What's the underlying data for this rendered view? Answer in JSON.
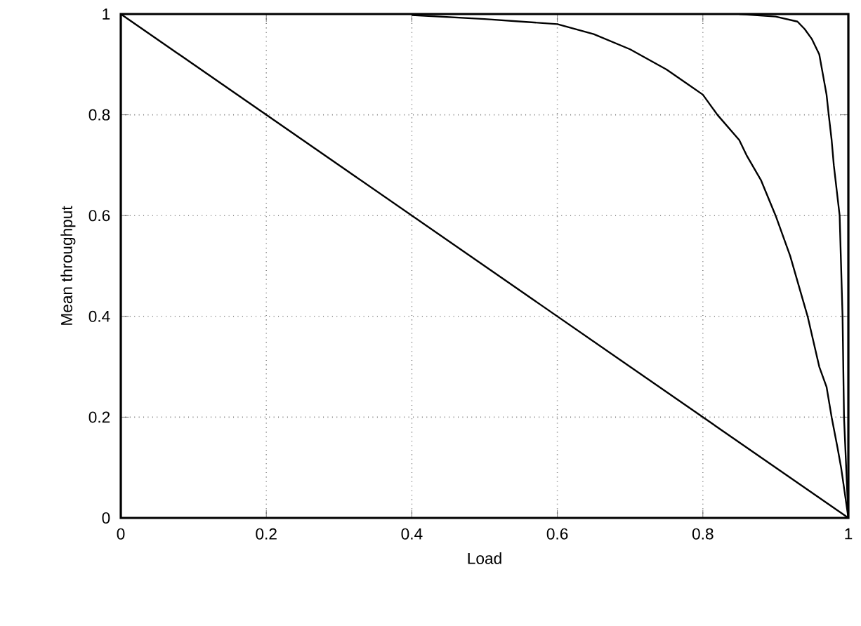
{
  "chart_data": {
    "type": "line",
    "xlabel": "Load",
    "ylabel": "Mean throughput",
    "xlim": [
      0,
      1
    ],
    "ylim": [
      0,
      1
    ],
    "xticks": [
      0,
      0.2,
      0.4,
      0.6,
      0.8,
      1
    ],
    "yticks": [
      0,
      0.2,
      0.4,
      0.6,
      0.8,
      1
    ],
    "grid": true,
    "line_style": "solid",
    "series": [
      {
        "color": "#000000",
        "x": [
          0,
          1
        ],
        "values": [
          1,
          0
        ]
      },
      {
        "color": "#000000",
        "x": [
          0.4,
          0.5,
          0.55,
          0.6,
          0.65,
          0.7,
          0.75,
          0.78,
          0.8,
          0.82,
          0.85,
          0.86,
          0.88,
          0.9,
          0.92,
          0.944,
          0.96,
          0.97,
          0.977,
          0.985,
          0.99,
          1
        ],
        "values": [
          0.998,
          0.99,
          0.985,
          0.98,
          0.96,
          0.93,
          0.89,
          0.86,
          0.84,
          0.8,
          0.75,
          0.72,
          0.67,
          0.6,
          0.52,
          0.4,
          0.3,
          0.26,
          0.2,
          0.14,
          0.1,
          0
        ]
      },
      {
        "color": "#000000",
        "x": [
          0.85,
          0.9,
          0.93,
          0.94,
          0.95,
          0.96,
          0.965,
          0.97,
          0.973,
          0.977,
          0.98,
          0.984,
          0.988,
          0.992,
          0.994,
          0.997,
          1
        ],
        "values": [
          1,
          0.995,
          0.985,
          0.97,
          0.95,
          0.92,
          0.88,
          0.84,
          0.8,
          0.75,
          0.7,
          0.65,
          0.6,
          0.4,
          0.2,
          0.1,
          0
        ]
      }
    ]
  }
}
